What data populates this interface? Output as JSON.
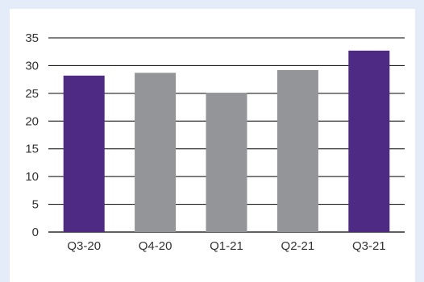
{
  "chart_data": {
    "type": "bar",
    "categories": [
      "Q3-20",
      "Q4-20",
      "Q1-21",
      "Q2-21",
      "Q3-21"
    ],
    "values": [
      28.2,
      28.7,
      25.1,
      29.2,
      32.7
    ],
    "colors": [
      "#4e2a84",
      "#939598",
      "#939598",
      "#939598",
      "#4e2a84"
    ],
    "title": "",
    "xlabel": "",
    "ylabel": "",
    "ylim": [
      0,
      35
    ],
    "yticks": [
      0,
      5,
      10,
      15,
      20,
      25,
      30,
      35
    ],
    "grid": true,
    "legend": "none"
  },
  "colors": {
    "background": "#e3ecf8",
    "panel": "#ffffff",
    "highlight_bar": "#4e2a84",
    "regular_bar": "#939598",
    "gridline": "#000000"
  }
}
